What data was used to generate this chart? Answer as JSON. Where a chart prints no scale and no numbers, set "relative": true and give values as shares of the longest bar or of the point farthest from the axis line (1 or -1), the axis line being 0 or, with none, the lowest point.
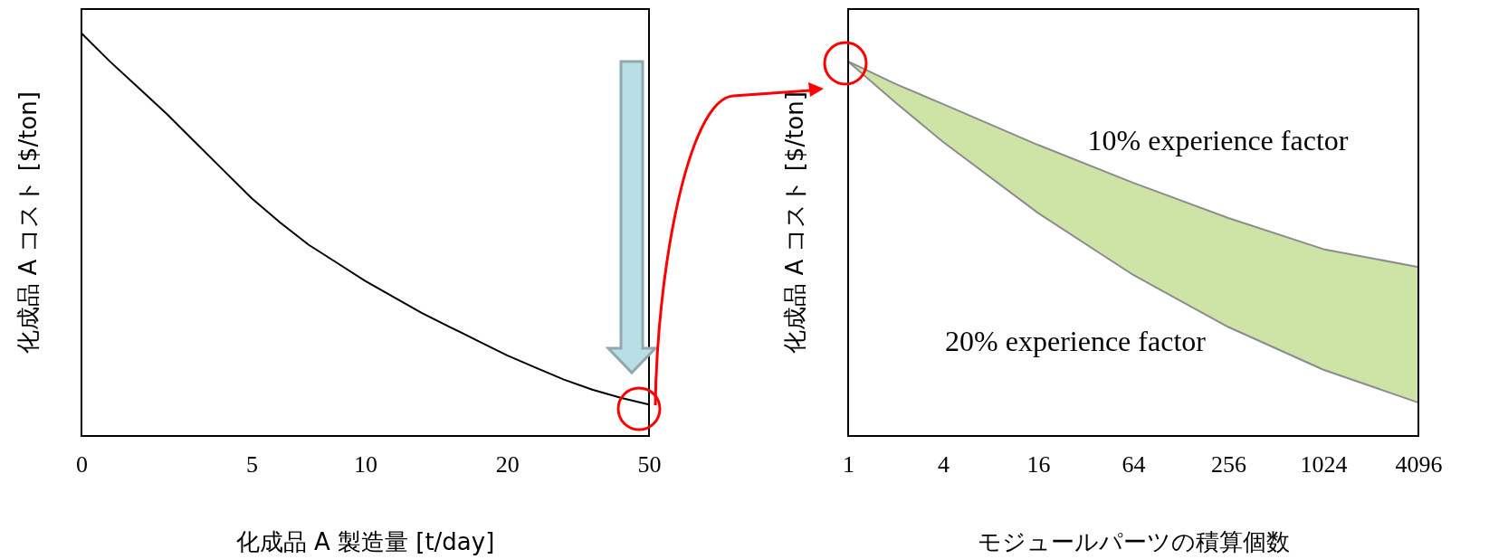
{
  "chart_data": [
    {
      "type": "line",
      "relative": true,
      "xlabel": "化成品 A 製造量 [t/day]",
      "ylabel": "化成品 A コスト [$/ton]",
      "categories": [
        "0",
        null,
        null,
        null,
        null,
        null,
        "5",
        null,
        null,
        null,
        "10",
        null,
        null,
        null,
        null,
        "20",
        null,
        null,
        null,
        null,
        "50"
      ],
      "tick_labels": "x",
      "series": [
        {
          "color": "#000000",
          "values": [
            1,
            0.93,
            0.865,
            0.8,
            0.73,
            0.66,
            0.59,
            0.53,
            0.475,
            0.43,
            0.385,
            0.345,
            0.305,
            0.27,
            0.235,
            0.2,
            0.17,
            0.14,
            0.115,
            0.095,
            0.078
          ]
        }
      ]
    },
    {
      "type": "line",
      "relative": true,
      "log": "x",
      "xlabel": "モジュールパーツの積算個数",
      "ylabel": "化成品 A コスト [$/ton]",
      "x": [
        1,
        2,
        4,
        16,
        64,
        256,
        1024,
        4096
      ],
      "xlim": [
        1,
        4096
      ],
      "xticks": [
        1,
        4,
        16,
        64,
        256,
        1024,
        4096
      ],
      "tick_labels": "x",
      "series": [
        {
          "name": "10% experience factor",
          "color": "#8c8c8c",
          "values": [
            1,
            0.94,
            0.886,
            0.777,
            0.676,
            0.582,
            0.499,
            0.451
          ],
          "lower": [
            1,
            0.89,
            0.785,
            0.595,
            0.43,
            0.291,
            0.177,
            0.089
          ],
          "upper": [
            1,
            0.94,
            0.886,
            0.777,
            0.676,
            0.582,
            0.499,
            0.451
          ]
        },
        {
          "name": "20% experience factor",
          "color": "#8c8c8c",
          "values": [
            1,
            0.89,
            0.785,
            0.595,
            0.43,
            0.291,
            0.177,
            0.089
          ]
        }
      ]
    }
  ]
}
